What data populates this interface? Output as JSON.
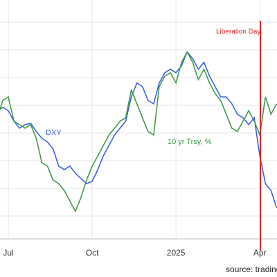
{
  "chart_data": {
    "type": "line",
    "categories": [
      null,
      null,
      "Jul",
      null,
      null,
      null,
      null,
      null,
      null,
      null,
      null,
      null,
      null,
      null,
      null,
      null,
      null,
      "Oct",
      null,
      null,
      null,
      null,
      null,
      null,
      null,
      null,
      null,
      null,
      null,
      null,
      null,
      null,
      "2025",
      null,
      null,
      null,
      null,
      null,
      null,
      null,
      null,
      null,
      null,
      null,
      null,
      null,
      null,
      "Apr",
      null,
      null,
      null
    ],
    "series": [
      {
        "name": "DXY",
        "color": "#3a62e0",
        "values": [
          56.3,
          57.8,
          56.3,
          51.6,
          48.4,
          50,
          50.6,
          46.9,
          43.8,
          42.2,
          39.1,
          31.3,
          29.7,
          31.3,
          28.1,
          25.6,
          23.4,
          24.4,
          29.7,
          35.9,
          40.6,
          45.3,
          48.4,
          51.6,
          62.5,
          68.8,
          67.2,
          60.9,
          59.4,
          68.8,
          73.4,
          75,
          73.4,
          76.6,
          82.8,
          79.7,
          75,
          78.1,
          71.9,
          67.2,
          62.5,
          62.5,
          59.4,
          54.7,
          53.1,
          50,
          53.1,
          35.9,
          23.4,
          20.3,
          12.5
        ]
      },
      {
        "name": "10 yr Trsy, %",
        "color": "#3f9a4a",
        "values": [
          53.1,
          60.9,
          62.5,
          51.6,
          50,
          48.4,
          50,
          43.8,
          32.8,
          31.3,
          25,
          23.4,
          20.3,
          15.6,
          10.9,
          17.2,
          25,
          31.3,
          35.9,
          40.6,
          45.3,
          48.4,
          51.6,
          53.1,
          65.6,
          59.4,
          53.1,
          46.9,
          45.3,
          67.2,
          71.9,
          73.4,
          68.8,
          78.1,
          82.8,
          78.1,
          70.3,
          75,
          68.8,
          64.1,
          60.9,
          54.7,
          48.4,
          46.9,
          51.6,
          56.3,
          51.6,
          45.3,
          62.5,
          54.7,
          59.4
        ]
      }
    ],
    "ylim": [
      0,
      100
    ],
    "annotation": "Liberation Day",
    "annotation_color": "#d62728",
    "source": "source: trading"
  }
}
